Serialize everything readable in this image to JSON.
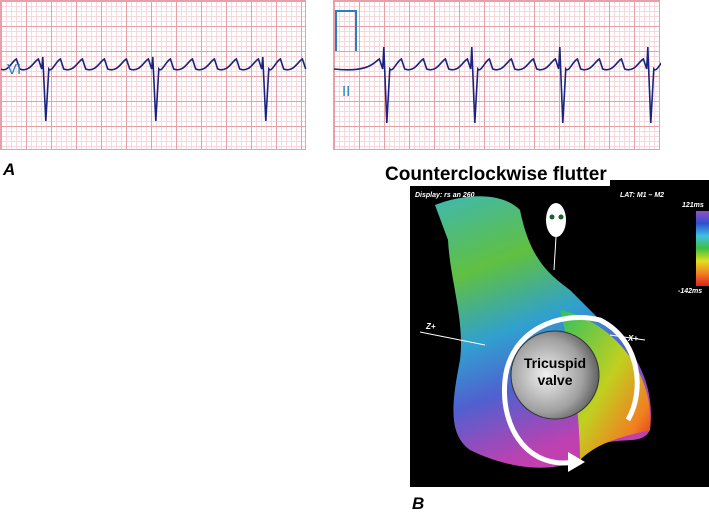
{
  "panel_a": {
    "label": "A",
    "leads": [
      {
        "label": "VI"
      },
      {
        "label": "II"
      }
    ]
  },
  "panel_b": {
    "label": "B",
    "title": "Counterclockwise flutter",
    "display_text": "Display: rs an 260",
    "lat_text": "LAT: M1 – M2",
    "scale_max": "121ms",
    "scale_min": "-142ms",
    "valve_label_1": "Tricuspid",
    "valve_label_2": "valve",
    "axis_z": "Z+",
    "axis_x": "X+"
  },
  "colors": {
    "trace": "#1a237e",
    "lead_label": "#2a7fc0",
    "grid": "#e8a0a8"
  }
}
